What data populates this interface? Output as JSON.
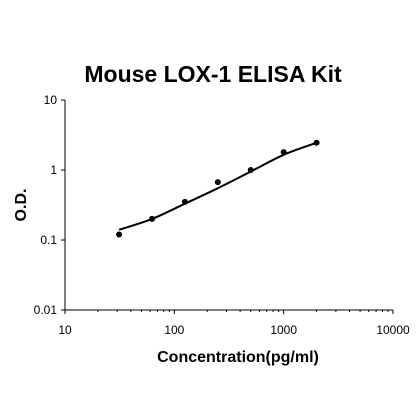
{
  "chart_data": {
    "type": "scatter",
    "title": "Mouse LOX-1 ELISA Kit",
    "xlabel": "Concentration(pg/ml)",
    "ylabel": "O.D.",
    "xscale": "log",
    "yscale": "log",
    "xlim": [
      10,
      10000
    ],
    "ylim": [
      0.01,
      10
    ],
    "x_ticks": [
      10,
      100,
      1000,
      10000
    ],
    "x_tick_labels": [
      "10",
      "100",
      "1000",
      "10000"
    ],
    "y_ticks": [
      0.01,
      0.1,
      1,
      10
    ],
    "y_tick_labels": [
      "0.01",
      "0.1",
      "1",
      "10"
    ],
    "grid": false,
    "legend": "none",
    "series": [
      {
        "x": [
          31.25,
          62.5,
          125,
          250,
          500,
          1000,
          2000
        ],
        "y": [
          0.12,
          0.2,
          0.35,
          0.67,
          1.0,
          1.8,
          2.45
        ]
      }
    ],
    "fit_curve": {
      "x": [
        31.25,
        62.5,
        125,
        250,
        500,
        1000,
        2000
      ],
      "y": [
        0.14,
        0.2,
        0.33,
        0.55,
        0.95,
        1.65,
        2.45
      ]
    },
    "colors": {
      "marker": "#000000",
      "line": "#000000",
      "axis": "#000000"
    }
  }
}
